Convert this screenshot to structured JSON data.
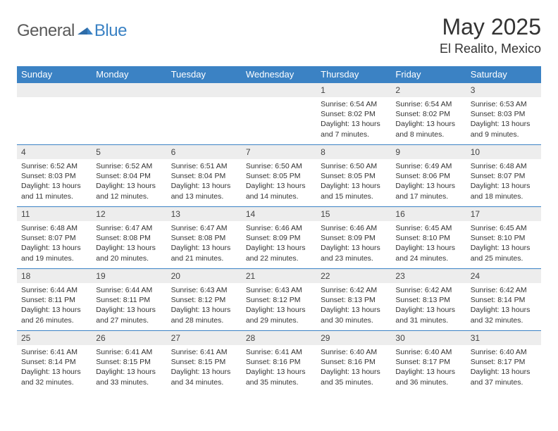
{
  "brand": {
    "general": "General",
    "blue": "Blue"
  },
  "title": "May 2025",
  "location": "El Realito, Mexico",
  "colors": {
    "header_bg": "#3b82c4",
    "daynum_bg": "#ededed",
    "border": "#3b82c4",
    "text": "#333333"
  },
  "weekdays": [
    "Sunday",
    "Monday",
    "Tuesday",
    "Wednesday",
    "Thursday",
    "Friday",
    "Saturday"
  ],
  "weeks": [
    [
      {
        "n": "",
        "sr": "",
        "ss": "",
        "dl": ""
      },
      {
        "n": "",
        "sr": "",
        "ss": "",
        "dl": ""
      },
      {
        "n": "",
        "sr": "",
        "ss": "",
        "dl": ""
      },
      {
        "n": "",
        "sr": "",
        "ss": "",
        "dl": ""
      },
      {
        "n": "1",
        "sr": "Sunrise: 6:54 AM",
        "ss": "Sunset: 8:02 PM",
        "dl": "Daylight: 13 hours and 7 minutes."
      },
      {
        "n": "2",
        "sr": "Sunrise: 6:54 AM",
        "ss": "Sunset: 8:02 PM",
        "dl": "Daylight: 13 hours and 8 minutes."
      },
      {
        "n": "3",
        "sr": "Sunrise: 6:53 AM",
        "ss": "Sunset: 8:03 PM",
        "dl": "Daylight: 13 hours and 9 minutes."
      }
    ],
    [
      {
        "n": "4",
        "sr": "Sunrise: 6:52 AM",
        "ss": "Sunset: 8:03 PM",
        "dl": "Daylight: 13 hours and 11 minutes."
      },
      {
        "n": "5",
        "sr": "Sunrise: 6:52 AM",
        "ss": "Sunset: 8:04 PM",
        "dl": "Daylight: 13 hours and 12 minutes."
      },
      {
        "n": "6",
        "sr": "Sunrise: 6:51 AM",
        "ss": "Sunset: 8:04 PM",
        "dl": "Daylight: 13 hours and 13 minutes."
      },
      {
        "n": "7",
        "sr": "Sunrise: 6:50 AM",
        "ss": "Sunset: 8:05 PM",
        "dl": "Daylight: 13 hours and 14 minutes."
      },
      {
        "n": "8",
        "sr": "Sunrise: 6:50 AM",
        "ss": "Sunset: 8:05 PM",
        "dl": "Daylight: 13 hours and 15 minutes."
      },
      {
        "n": "9",
        "sr": "Sunrise: 6:49 AM",
        "ss": "Sunset: 8:06 PM",
        "dl": "Daylight: 13 hours and 17 minutes."
      },
      {
        "n": "10",
        "sr": "Sunrise: 6:48 AM",
        "ss": "Sunset: 8:07 PM",
        "dl": "Daylight: 13 hours and 18 minutes."
      }
    ],
    [
      {
        "n": "11",
        "sr": "Sunrise: 6:48 AM",
        "ss": "Sunset: 8:07 PM",
        "dl": "Daylight: 13 hours and 19 minutes."
      },
      {
        "n": "12",
        "sr": "Sunrise: 6:47 AM",
        "ss": "Sunset: 8:08 PM",
        "dl": "Daylight: 13 hours and 20 minutes."
      },
      {
        "n": "13",
        "sr": "Sunrise: 6:47 AM",
        "ss": "Sunset: 8:08 PM",
        "dl": "Daylight: 13 hours and 21 minutes."
      },
      {
        "n": "14",
        "sr": "Sunrise: 6:46 AM",
        "ss": "Sunset: 8:09 PM",
        "dl": "Daylight: 13 hours and 22 minutes."
      },
      {
        "n": "15",
        "sr": "Sunrise: 6:46 AM",
        "ss": "Sunset: 8:09 PM",
        "dl": "Daylight: 13 hours and 23 minutes."
      },
      {
        "n": "16",
        "sr": "Sunrise: 6:45 AM",
        "ss": "Sunset: 8:10 PM",
        "dl": "Daylight: 13 hours and 24 minutes."
      },
      {
        "n": "17",
        "sr": "Sunrise: 6:45 AM",
        "ss": "Sunset: 8:10 PM",
        "dl": "Daylight: 13 hours and 25 minutes."
      }
    ],
    [
      {
        "n": "18",
        "sr": "Sunrise: 6:44 AM",
        "ss": "Sunset: 8:11 PM",
        "dl": "Daylight: 13 hours and 26 minutes."
      },
      {
        "n": "19",
        "sr": "Sunrise: 6:44 AM",
        "ss": "Sunset: 8:11 PM",
        "dl": "Daylight: 13 hours and 27 minutes."
      },
      {
        "n": "20",
        "sr": "Sunrise: 6:43 AM",
        "ss": "Sunset: 8:12 PM",
        "dl": "Daylight: 13 hours and 28 minutes."
      },
      {
        "n": "21",
        "sr": "Sunrise: 6:43 AM",
        "ss": "Sunset: 8:12 PM",
        "dl": "Daylight: 13 hours and 29 minutes."
      },
      {
        "n": "22",
        "sr": "Sunrise: 6:42 AM",
        "ss": "Sunset: 8:13 PM",
        "dl": "Daylight: 13 hours and 30 minutes."
      },
      {
        "n": "23",
        "sr": "Sunrise: 6:42 AM",
        "ss": "Sunset: 8:13 PM",
        "dl": "Daylight: 13 hours and 31 minutes."
      },
      {
        "n": "24",
        "sr": "Sunrise: 6:42 AM",
        "ss": "Sunset: 8:14 PM",
        "dl": "Daylight: 13 hours and 32 minutes."
      }
    ],
    [
      {
        "n": "25",
        "sr": "Sunrise: 6:41 AM",
        "ss": "Sunset: 8:14 PM",
        "dl": "Daylight: 13 hours and 32 minutes."
      },
      {
        "n": "26",
        "sr": "Sunrise: 6:41 AM",
        "ss": "Sunset: 8:15 PM",
        "dl": "Daylight: 13 hours and 33 minutes."
      },
      {
        "n": "27",
        "sr": "Sunrise: 6:41 AM",
        "ss": "Sunset: 8:15 PM",
        "dl": "Daylight: 13 hours and 34 minutes."
      },
      {
        "n": "28",
        "sr": "Sunrise: 6:41 AM",
        "ss": "Sunset: 8:16 PM",
        "dl": "Daylight: 13 hours and 35 minutes."
      },
      {
        "n": "29",
        "sr": "Sunrise: 6:40 AM",
        "ss": "Sunset: 8:16 PM",
        "dl": "Daylight: 13 hours and 35 minutes."
      },
      {
        "n": "30",
        "sr": "Sunrise: 6:40 AM",
        "ss": "Sunset: 8:17 PM",
        "dl": "Daylight: 13 hours and 36 minutes."
      },
      {
        "n": "31",
        "sr": "Sunrise: 6:40 AM",
        "ss": "Sunset: 8:17 PM",
        "dl": "Daylight: 13 hours and 37 minutes."
      }
    ]
  ]
}
